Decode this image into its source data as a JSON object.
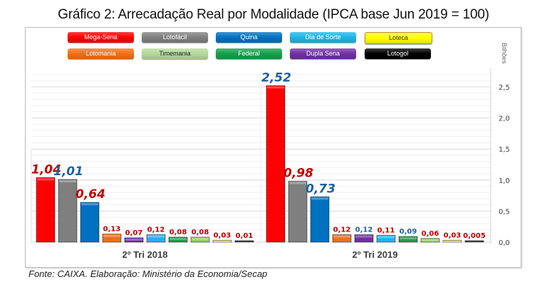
{
  "title": "Gráfico 2: Arrecadação Real por Modalidade (IPCA base Jun 2019 = 100)",
  "source": "Fonte: CAIXA. Elaboração: Ministério da Economia/Secap",
  "colors": {
    "label_red": "#c00000",
    "label_blue": "#1f5f9f"
  },
  "legend": [
    {
      "name": "Mega-Sena",
      "color": "#ff0000",
      "text_color": "#ffffff"
    },
    {
      "name": "Lotofácil",
      "color": "#7f7f7f",
      "text_color": "#ffffff"
    },
    {
      "name": "Quina",
      "color": "#0070c0",
      "text_color": "#ffffff"
    },
    {
      "name": "Dia de Sorte",
      "color": "#1fb4e8",
      "text_color": "#ffffff"
    },
    {
      "name": "Loteca",
      "color": "#ffff00",
      "text_color": "#333333"
    },
    {
      "name": "Lotomania",
      "color": "#f36f14",
      "text_color": "#ffffff"
    },
    {
      "name": "Timemania",
      "color": "#b4d99a",
      "text_color": "#222222"
    },
    {
      "name": "Federal",
      "color": "#14a04b",
      "text_color": "#ffffff"
    },
    {
      "name": "Dupla Sena",
      "color": "#7030a0",
      "text_color": "#ffffff"
    },
    {
      "name": "Lotogol",
      "color": "#000000",
      "text_color": "#ffffff"
    }
  ],
  "chart_data": {
    "type": "bar",
    "title": "Gráfico 2: Arrecadação Real por Modalidade (IPCA base Jun 2019 = 100)",
    "xlabel": "",
    "ylabel": "Bilhões",
    "ylim": [
      0,
      2.75
    ],
    "yticks": [
      0,
      0.5,
      1.0,
      1.5,
      2.0,
      2.5
    ],
    "ytick_labels": [
      "0,0",
      "0,5",
      "1,0",
      "1,5",
      "2,0",
      "2,5"
    ],
    "y_axis_side": "right",
    "grid": true,
    "legend_position": "top",
    "categories": [
      "2º Tri 2018",
      "2º Tri 2019"
    ],
    "series_order": [
      "Mega-Sena",
      "Lotofácil",
      "Quina",
      "Lotomania",
      "Dupla Sena",
      "Dia de Sorte",
      "Federal",
      "Timemania",
      "Loteca",
      "Lotogol"
    ],
    "series_colors": [
      "#ff0000",
      "#7f7f7f",
      "#0070c0",
      "#f36f14",
      "#7030a0",
      "#1fb4e8",
      "#14a04b",
      "#92d050",
      "#e6e64a",
      "#1a1a1a"
    ],
    "groups": [
      {
        "label": "2º Tri 2018",
        "values": [
          1.04,
          1.01,
          0.64,
          0.13,
          0.07,
          0.12,
          0.08,
          0.08,
          0.03,
          0.01
        ],
        "value_labels": [
          "1,04",
          "1,01",
          "0,64",
          "0,13",
          "0,07",
          "0,12",
          "0,08",
          "0,08",
          "0,03",
          "0,01"
        ],
        "label_colors": [
          "red",
          "blue",
          "red",
          "red",
          "red",
          "red",
          "red",
          "red",
          "red",
          "red"
        ]
      },
      {
        "label": "2º Tri 2019",
        "values": [
          2.52,
          0.98,
          0.73,
          0.12,
          0.12,
          0.11,
          0.09,
          0.06,
          0.03,
          0.005
        ],
        "value_labels": [
          "2,52",
          "0,98",
          "0,73",
          "0,12",
          "0,12",
          "0,11",
          "0,09",
          "0,06",
          "0,03",
          "0,005"
        ],
        "label_colors": [
          "blue",
          "red",
          "blue",
          "red",
          "blue",
          "red",
          "blue",
          "red",
          "red",
          "red"
        ]
      }
    ]
  }
}
